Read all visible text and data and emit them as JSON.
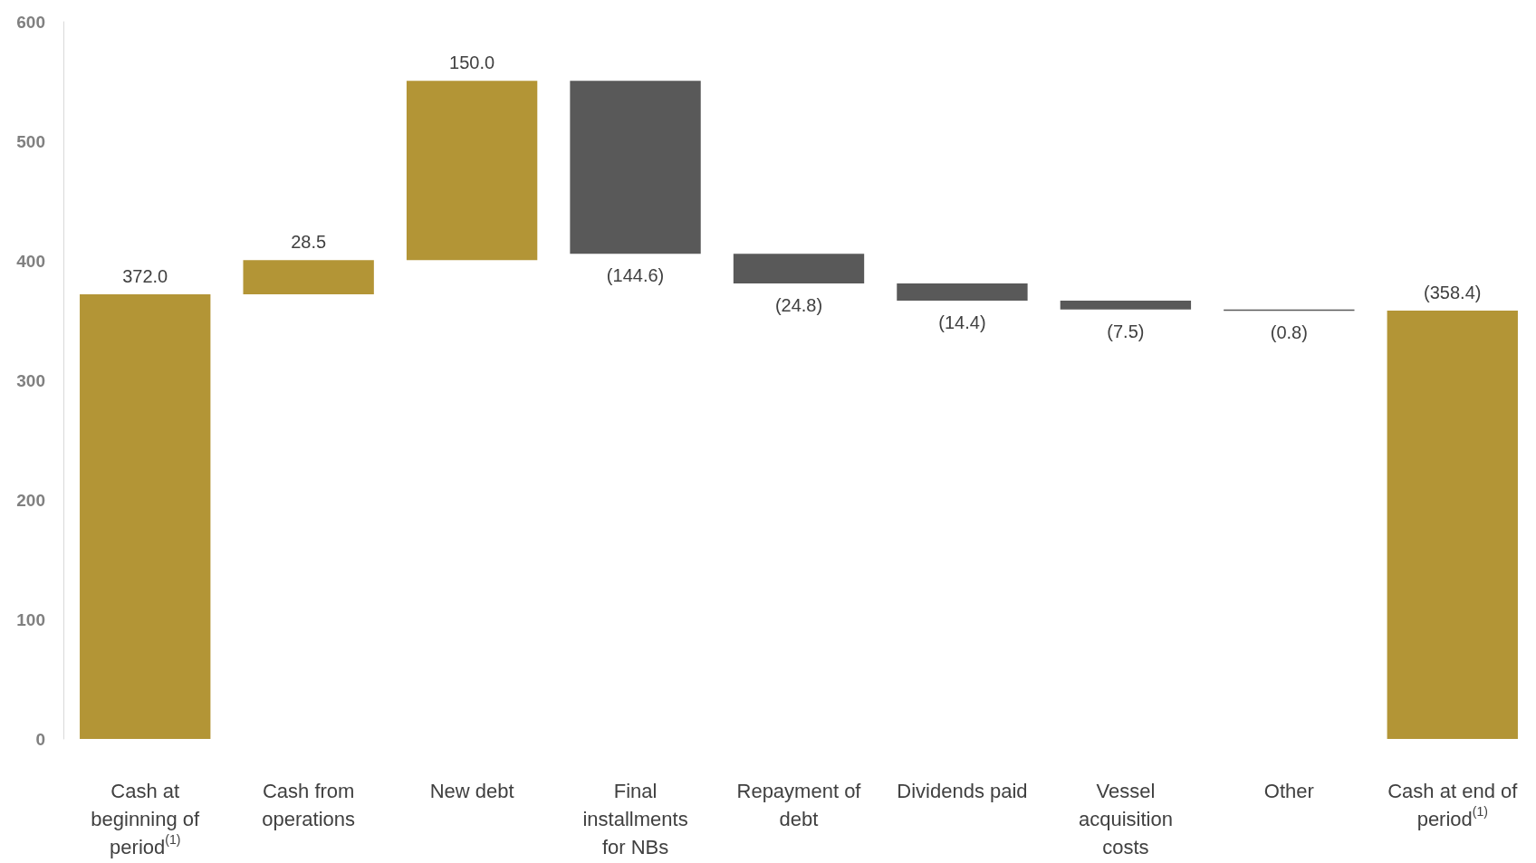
{
  "chart_data": {
    "type": "bar",
    "categories": [
      "Cash at beginning of period$^{(1)}$",
      "Cash from operations",
      "New debt",
      "Final installments for NBs",
      "Repayment of debt",
      "Dividends paid",
      "Vessel acquisition costs",
      "Other",
      "Cash at end of period$^{(1)}$"
    ],
    "values": [
      372.0,
      28.5,
      150.0,
      -144.6,
      -24.8,
      -14.4,
      -7.5,
      -0.8,
      358.4
    ],
    "base": [
      0,
      372.0,
      400.5,
      550.5,
      405.9,
      381.1,
      366.7,
      359.2,
      0
    ],
    "colors": [
      "#b39536",
      "#b39536",
      "#b39536",
      "#595959",
      "#595959",
      "#595959",
      "#595959",
      "#595959",
      "#b39536"
    ],
    "value_labels": [
      "372.0",
      "28.5",
      "150.0",
      "(144.6)",
      "(24.8)",
      "(14.4)",
      "(7.5)",
      "(0.8)",
      "(358.4)"
    ],
    "ylim": [
      0,
      600
    ],
    "yticks": [
      0,
      100,
      200,
      300,
      400,
      500,
      600
    ]
  }
}
